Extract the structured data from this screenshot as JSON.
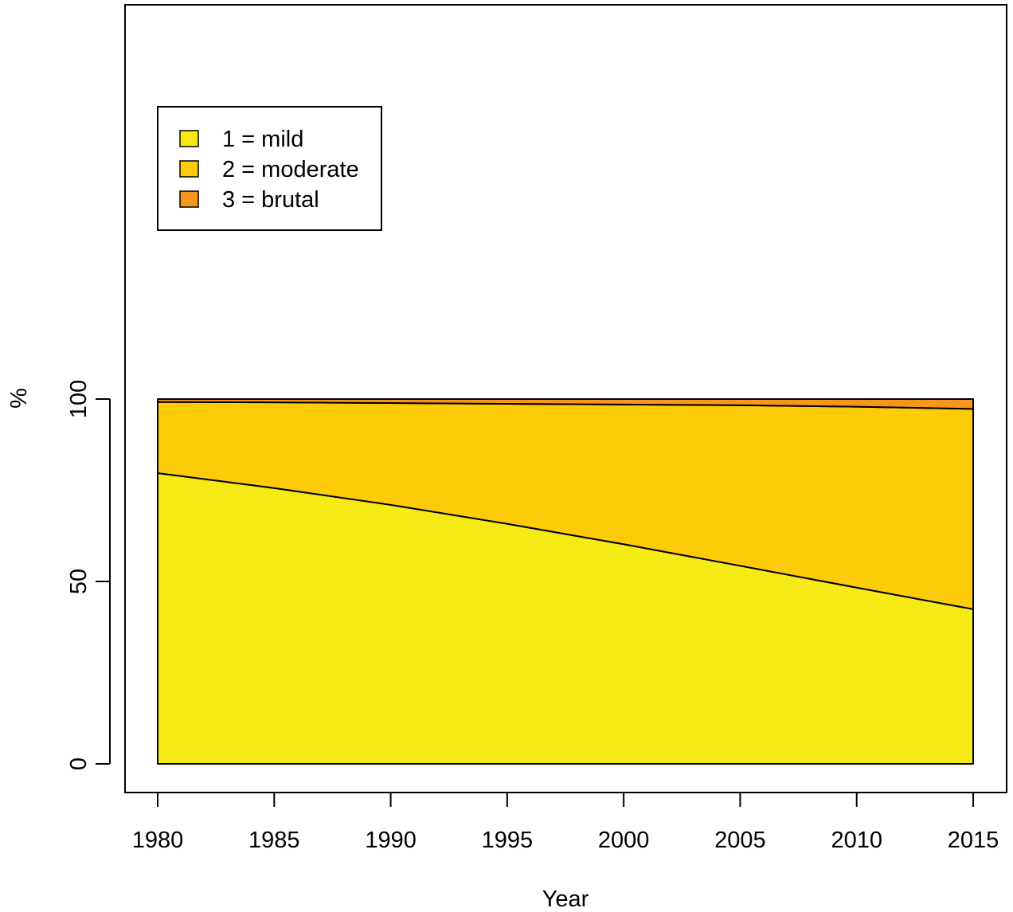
{
  "chart_data": {
    "type": "area",
    "stacked": true,
    "title": "",
    "xlabel": "Year",
    "ylabel": "%",
    "xlim": [
      1980,
      2015
    ],
    "ylim": [
      0,
      100
    ],
    "x_ticks": [
      1980,
      1985,
      1990,
      1995,
      2000,
      2005,
      2010,
      2015
    ],
    "y_ticks": [
      0,
      50,
      100
    ],
    "grid": false,
    "legend_position": "top-left",
    "x": [
      1980,
      1985,
      1990,
      1995,
      2000,
      2005,
      2010,
      2015
    ],
    "series": [
      {
        "name": "1 = mild",
        "color": "#F5E916",
        "values": [
          79.7,
          75.6,
          71.0,
          65.8,
          60.2,
          54.3,
          48.3,
          42.4
        ]
      },
      {
        "name": "2 = moderate",
        "color": "#FDCB08",
        "values": [
          19.5,
          23.5,
          27.9,
          32.9,
          38.3,
          44.0,
          49.6,
          54.9
        ]
      },
      {
        "name": "3 = brutal",
        "color": "#F7961C",
        "values": [
          0.8,
          0.9,
          1.1,
          1.3,
          1.5,
          1.7,
          2.1,
          2.7
        ]
      }
    ]
  }
}
